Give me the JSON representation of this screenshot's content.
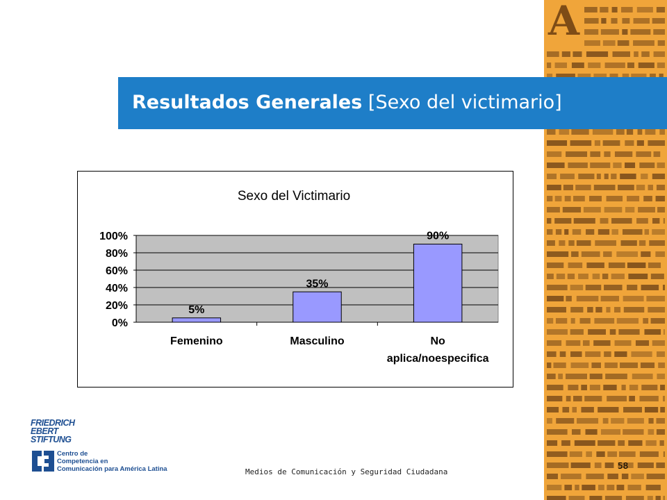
{
  "slide": {
    "title_strong": "Resultados Generales",
    "title_rest": "[Sexo del victimario]",
    "footer": "Medios de Comunicación y Seguridad Ciudadana",
    "page_number": "58"
  },
  "logos": {
    "fes_lines": [
      "FRIEDRICH",
      "EBERT",
      "STIFTUNG"
    ],
    "c3_lines": [
      "Centro de",
      "Competencia en",
      "Comunicación para América Latina"
    ]
  },
  "decor": {
    "side_big_letter": "A"
  },
  "colors": {
    "title_bar": "#1e7ec8",
    "side_strip": "#f0a53a",
    "bar_fill": "#9999ff",
    "plot_area": "#c0c0c0",
    "logo": "#1e4f92"
  },
  "chart_data": {
    "type": "bar",
    "title": "Sexo del Victimario",
    "categories": [
      "Femenino",
      "Masculino",
      "No aplica/noespecifica"
    ],
    "category_lines": [
      [
        "Femenino"
      ],
      [
        "Masculino"
      ],
      [
        "No",
        "aplica/noespecifica"
      ]
    ],
    "values": [
      5,
      35,
      90
    ],
    "data_labels": [
      "5%",
      "35%",
      "90%"
    ],
    "y_ticks": [
      "0%",
      "20%",
      "40%",
      "60%",
      "80%",
      "100%"
    ],
    "ylim": [
      0,
      100
    ],
    "grid": true,
    "legend": "none"
  }
}
